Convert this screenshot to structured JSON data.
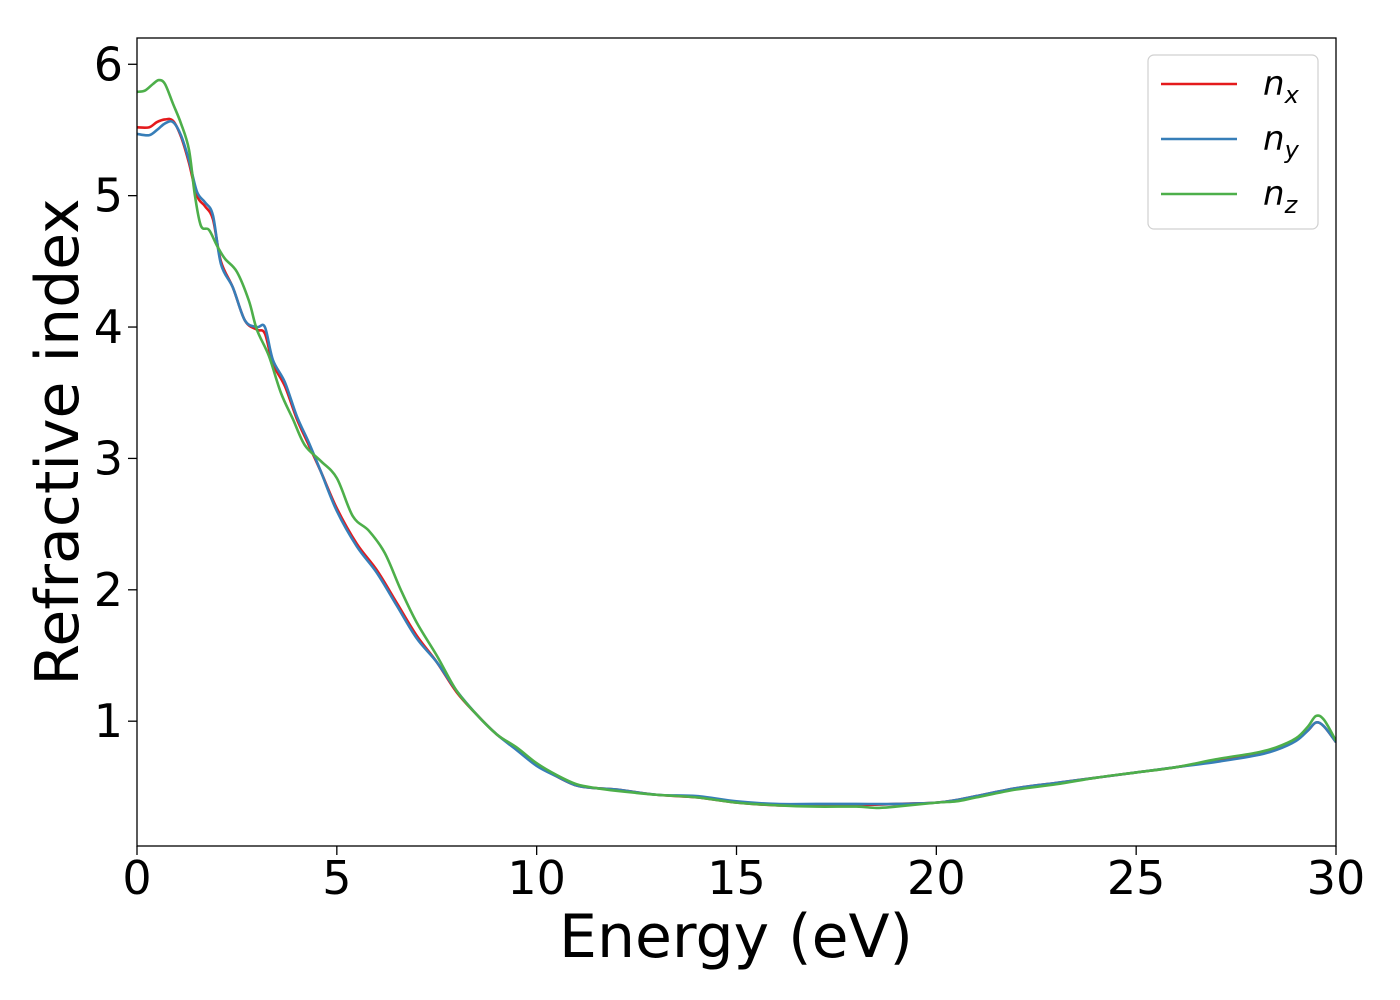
{
  "chart_data": {
    "type": "line",
    "xlabel": "Energy (eV)",
    "ylabel": "Refractive index",
    "xlim": [
      0,
      30
    ],
    "ylim": [
      0.05,
      6.2
    ],
    "xticks": [
      "0",
      "5",
      "10",
      "15",
      "20",
      "25",
      "30"
    ],
    "yticks": [
      "1",
      "2",
      "3",
      "4",
      "5",
      "6"
    ],
    "grid": false,
    "legend_position": "top-right",
    "series": [
      {
        "name": "n",
        "subscript": "x",
        "color": "#e41a1c",
        "x": [
          0,
          0.3,
          0.5,
          0.7,
          0.9,
          1.1,
          1.3,
          1.5,
          1.7,
          1.9,
          2.1,
          2.4,
          2.7,
          3.0,
          3.2,
          3.4,
          3.7,
          4.0,
          4.3,
          4.6,
          5.0,
          5.5,
          6.0,
          6.5,
          7.0,
          7.5,
          8.0,
          8.5,
          9.0,
          9.5,
          10.0,
          10.5,
          11.0,
          11.5,
          12.0,
          13.0,
          14.0,
          15.0,
          16.0,
          17.0,
          18.0,
          19.0,
          20.0,
          20.5,
          21.0,
          22.0,
          23.0,
          24.0,
          25.0,
          26.0,
          27.0,
          28.0,
          28.5,
          29.0,
          29.3,
          29.5,
          29.7,
          30.0
        ],
        "y": [
          5.52,
          5.52,
          5.56,
          5.58,
          5.57,
          5.45,
          5.25,
          5.0,
          4.92,
          4.82,
          4.5,
          4.3,
          4.05,
          3.98,
          3.95,
          3.72,
          3.55,
          3.3,
          3.1,
          2.9,
          2.62,
          2.35,
          2.15,
          1.9,
          1.65,
          1.45,
          1.22,
          1.05,
          0.9,
          0.79,
          0.67,
          0.58,
          0.51,
          0.49,
          0.48,
          0.44,
          0.42,
          0.38,
          0.36,
          0.36,
          0.36,
          0.37,
          0.38,
          0.4,
          0.43,
          0.49,
          0.53,
          0.57,
          0.61,
          0.65,
          0.7,
          0.75,
          0.79,
          0.86,
          0.93,
          0.99,
          0.96,
          0.84
        ]
      },
      {
        "name": "n",
        "subscript": "y",
        "color": "#377eb8",
        "x": [
          0,
          0.3,
          0.5,
          0.7,
          0.9,
          1.1,
          1.3,
          1.5,
          1.7,
          1.9,
          2.1,
          2.4,
          2.7,
          3.0,
          3.2,
          3.4,
          3.7,
          4.0,
          4.3,
          4.6,
          5.0,
          5.5,
          6.0,
          6.5,
          7.0,
          7.5,
          8.0,
          8.5,
          9.0,
          9.5,
          10.0,
          10.5,
          11.0,
          11.5,
          12.0,
          13.0,
          14.0,
          15.0,
          16.0,
          17.0,
          18.0,
          19.0,
          20.0,
          20.5,
          21.0,
          22.0,
          23.0,
          24.0,
          25.0,
          26.0,
          27.0,
          28.0,
          28.5,
          29.0,
          29.3,
          29.5,
          29.7,
          30.0
        ],
        "y": [
          5.47,
          5.46,
          5.5,
          5.55,
          5.56,
          5.46,
          5.27,
          5.03,
          4.95,
          4.85,
          4.48,
          4.3,
          4.05,
          4.0,
          4.0,
          3.75,
          3.58,
          3.32,
          3.12,
          2.9,
          2.6,
          2.33,
          2.13,
          1.88,
          1.63,
          1.45,
          1.23,
          1.05,
          0.9,
          0.78,
          0.66,
          0.58,
          0.51,
          0.49,
          0.48,
          0.44,
          0.43,
          0.39,
          0.37,
          0.37,
          0.37,
          0.37,
          0.38,
          0.4,
          0.43,
          0.49,
          0.53,
          0.57,
          0.61,
          0.65,
          0.69,
          0.74,
          0.78,
          0.85,
          0.93,
          0.99,
          0.96,
          0.84
        ]
      },
      {
        "name": "n",
        "subscript": "z",
        "color": "#4daf4a",
        "x": [
          0,
          0.2,
          0.4,
          0.55,
          0.7,
          0.9,
          1.1,
          1.3,
          1.45,
          1.6,
          1.8,
          2.0,
          2.2,
          2.5,
          2.8,
          3.0,
          3.3,
          3.6,
          3.9,
          4.2,
          4.6,
          5.0,
          5.4,
          5.8,
          6.2,
          6.6,
          7.0,
          7.5,
          8.0,
          8.5,
          9.0,
          9.5,
          10.0,
          10.5,
          11.0,
          11.5,
          12.0,
          13.0,
          14.0,
          15.0,
          16.0,
          17.0,
          18.0,
          18.5,
          19.0,
          20.0,
          20.5,
          21.0,
          22.0,
          23.0,
          24.0,
          25.0,
          26.0,
          27.0,
          28.0,
          28.5,
          29.0,
          29.3,
          29.5,
          29.7,
          30.0
        ],
        "y": [
          5.79,
          5.8,
          5.85,
          5.88,
          5.85,
          5.7,
          5.55,
          5.35,
          5.0,
          4.77,
          4.74,
          4.62,
          4.52,
          4.42,
          4.2,
          3.98,
          3.78,
          3.5,
          3.3,
          3.1,
          2.98,
          2.85,
          2.56,
          2.45,
          2.28,
          2.0,
          1.75,
          1.5,
          1.23,
          1.05,
          0.9,
          0.8,
          0.68,
          0.59,
          0.52,
          0.49,
          0.47,
          0.44,
          0.42,
          0.38,
          0.36,
          0.35,
          0.35,
          0.34,
          0.35,
          0.38,
          0.39,
          0.42,
          0.48,
          0.52,
          0.57,
          0.61,
          0.65,
          0.71,
          0.76,
          0.8,
          0.87,
          0.96,
          1.04,
          1.01,
          0.85
        ]
      }
    ]
  }
}
